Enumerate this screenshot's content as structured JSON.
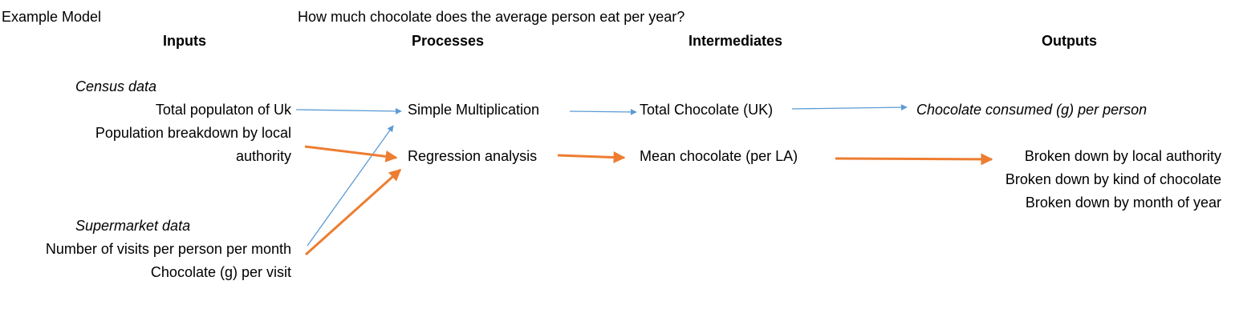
{
  "header": {
    "model_label": "Example Model",
    "question": "How much chocolate does the average person eat per year?"
  },
  "columns": {
    "inputs": "Inputs",
    "processes": "Processes",
    "intermediates": "Intermediates",
    "outputs": "Outputs"
  },
  "inputs": {
    "census_heading": "Census data",
    "census_items": [
      "Total populaton of Uk",
      "Population breakdown by local",
      "authority"
    ],
    "supermarket_heading": "Supermarket data",
    "supermarket_items": [
      "Number of visits per person per month",
      "Chocolate (g) per visit"
    ]
  },
  "processes": [
    "Simple Multiplication",
    "Regression analysis"
  ],
  "intermediates": [
    "Total Chocolate (UK)",
    "Mean chocolate (per LA)"
  ],
  "outputs": {
    "primary": "Chocolate consumed (g) per person",
    "breakdowns": [
      "Broken down by local authority",
      "Broken down by kind of chocolate",
      "Broken down by month of year"
    ]
  },
  "colors": {
    "thin_arrow": "#5b9bd5",
    "thick_arrow": "#ed7d31"
  }
}
